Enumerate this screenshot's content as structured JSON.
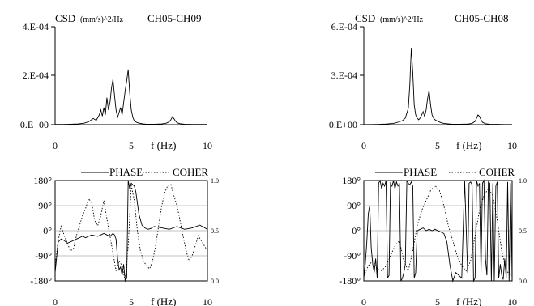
{
  "chart_data": [
    {
      "type": "line",
      "panel": "csd",
      "ylabel": {
        "prefix": "CSD",
        "units": "(mm/s)^2/Hz"
      },
      "channel": "CH05-CH09",
      "y_ticks": [
        "0.E+00",
        "2.E-04",
        "4.E-04"
      ],
      "ylim": [
        0,
        0.0004
      ],
      "x_ticks": [
        "0",
        "5",
        "10"
      ],
      "xlabel": "f (Hz)",
      "xlim": [
        0,
        10
      ],
      "series": [
        {
          "style": "solid",
          "x": [
            0,
            0.5,
            1,
            1.5,
            1.9,
            2.2,
            2.5,
            2.7,
            2.9,
            3.0,
            3.1,
            3.2,
            3.3,
            3.4,
            3.5,
            3.6,
            3.7,
            3.8,
            3.9,
            4.0,
            4.1,
            4.2,
            4.3,
            4.4,
            4.5,
            4.6,
            4.7,
            4.8,
            4.9,
            5.0,
            5.1,
            5.2,
            5.4,
            5.6,
            5.8,
            6.0,
            6.5,
            7.0,
            7.3,
            7.5,
            7.6,
            7.7,
            7.8,
            7.9,
            8.0,
            8.2,
            8.5,
            9,
            9.5,
            10
          ],
          "y": [
            1e-06,
            1e-06,
            2e-06,
            3e-06,
            6e-06,
            1.2e-05,
            2.5e-05,
            1.8e-05,
            4e-05,
            6e-05,
            3.5e-05,
            7e-05,
            4e-05,
            0.00011,
            6e-05,
            9e-05,
            0.00015,
            0.000185,
            0.00012,
            6e-05,
            3e-05,
            5e-05,
            7e-05,
            4e-05,
            9e-05,
            0.00014,
            0.00018,
            0.000225,
            0.00013,
            6e-05,
            3e-05,
            1.5e-05,
            8e-06,
            5e-06,
            3e-06,
            2e-06,
            2e-06,
            3e-06,
            6e-06,
            1.2e-05,
            2e-05,
            3.2e-05,
            2.5e-05,
            1.5e-05,
            8e-06,
            4e-06,
            2e-06,
            1e-06,
            1e-06,
            1e-06
          ]
        }
      ]
    },
    {
      "type": "line",
      "panel": "csd",
      "ylabel": {
        "prefix": "CSD",
        "units": "(mm/s)^2/Hz"
      },
      "channel": "CH05-CH08",
      "y_ticks": [
        "0.E+00",
        "3.E-04",
        "6.E-04"
      ],
      "ylim": [
        0,
        0.0006
      ],
      "x_ticks": [
        "0",
        "5",
        "10"
      ],
      "xlabel": "f (Hz)",
      "xlim": [
        0,
        10
      ],
      "series": [
        {
          "style": "solid",
          "x": [
            0,
            0.5,
            1,
            1.5,
            2.0,
            2.3,
            2.6,
            2.8,
            3.0,
            3.1,
            3.2,
            3.3,
            3.4,
            3.5,
            3.6,
            3.7,
            3.8,
            3.9,
            4.0,
            4.1,
            4.2,
            4.3,
            4.4,
            4.5,
            4.6,
            4.7,
            4.8,
            4.9,
            5.0,
            5.2,
            5.4,
            5.6,
            5.8,
            6.0,
            6.5,
            7.0,
            7.3,
            7.5,
            7.6,
            7.7,
            7.8,
            7.9,
            8.0,
            8.2,
            8.5,
            9,
            9.5,
            10
          ],
          "y": [
            1e-06,
            1e-06,
            2e-06,
            4e-06,
            8e-06,
            1.5e-05,
            2.5e-05,
            4e-05,
            0.0001,
            0.00024,
            0.00047,
            0.00032,
            0.00012,
            6e-05,
            4e-05,
            3e-05,
            4e-05,
            6e-05,
            8e-05,
            5e-05,
            9e-05,
            0.00016,
            0.00021,
            0.00012,
            6e-05,
            4e-05,
            3e-05,
            2.5e-05,
            2e-05,
            1.2e-05,
            8e-06,
            6e-06,
            4e-06,
            3e-06,
            3e-06,
            4e-06,
            8e-06,
            2e-05,
            4e-05,
            6e-05,
            5e-05,
            3e-05,
            1.5e-05,
            6e-06,
            3e-06,
            2e-06,
            1e-06,
            1e-06
          ]
        }
      ]
    },
    {
      "type": "line",
      "panel": "phase",
      "legend": [
        "PHASE",
        "COHER"
      ],
      "legend_position": "top",
      "y_ticks": [
        "180°",
        "90°",
        "0°",
        "-90°",
        "-180°"
      ],
      "ylim": [
        -180,
        180
      ],
      "y2_ticks": [
        "1.0",
        "0.5",
        "0.0"
      ],
      "y2lim": [
        0,
        1
      ],
      "x_ticks": [
        "0",
        "5",
        "10"
      ],
      "xlabel": "f (Hz)",
      "xlim": [
        0,
        10
      ],
      "grid": true,
      "series": [
        {
          "name": "PHASE",
          "style": "solid",
          "axis": "left",
          "x": [
            0,
            0.2,
            0.4,
            0.6,
            0.8,
            1.0,
            1.2,
            1.4,
            1.6,
            1.8,
            2.0,
            2.2,
            2.4,
            2.6,
            2.8,
            3.0,
            3.2,
            3.4,
            3.6,
            3.8,
            3.9,
            4.0,
            4.1,
            4.2,
            4.3,
            4.4,
            4.5,
            4.6,
            4.7,
            4.8,
            4.9,
            5.0,
            5.1,
            5.2,
            5.3,
            5.5,
            5.7,
            5.9,
            6.1,
            6.3,
            6.5,
            7.0,
            7.5,
            8.0,
            8.5,
            9.0,
            9.5,
            10
          ],
          "y": [
            -150,
            -40,
            -30,
            -35,
            -45,
            -40,
            -35,
            -30,
            -25,
            -20,
            -25,
            -20,
            -15,
            -18,
            -20,
            -15,
            -10,
            -15,
            -20,
            -10,
            -15,
            -30,
            -100,
            -140,
            -130,
            -160,
            -120,
            -180,
            -170,
            180,
            150,
            170,
            165,
            160,
            140,
            60,
            20,
            10,
            5,
            8,
            15,
            10,
            5,
            15,
            5,
            10,
            20,
            5
          ]
        },
        {
          "name": "COHER",
          "style": "dotted",
          "axis": "right",
          "x": [
            0,
            0.2,
            0.4,
            0.6,
            0.8,
            1.0,
            1.2,
            1.4,
            1.6,
            1.8,
            2.0,
            2.2,
            2.4,
            2.6,
            2.8,
            3.0,
            3.2,
            3.4,
            3.6,
            3.8,
            4.0,
            4.2,
            4.4,
            4.6,
            4.8,
            5.0,
            5.2,
            5.4,
            5.6,
            5.8,
            6.0,
            6.2,
            6.4,
            6.6,
            6.8,
            7.0,
            7.2,
            7.4,
            7.6,
            7.8,
            8.0,
            8.2,
            8.4,
            8.6,
            8.8,
            9.0,
            9.2,
            9.4,
            9.6,
            9.8,
            10
          ],
          "y": [
            0.15,
            0.4,
            0.55,
            0.45,
            0.38,
            0.3,
            0.32,
            0.45,
            0.55,
            0.65,
            0.72,
            0.82,
            0.78,
            0.6,
            0.55,
            0.65,
            0.8,
            0.62,
            0.45,
            0.28,
            0.1,
            0.2,
            0.15,
            0.0,
            0.35,
            0.95,
            0.8,
            0.5,
            0.3,
            0.2,
            0.15,
            0.12,
            0.2,
            0.35,
            0.55,
            0.75,
            0.88,
            0.95,
            0.96,
            0.85,
            0.75,
            0.6,
            0.45,
            0.3,
            0.2,
            0.25,
            0.35,
            0.45,
            0.4,
            0.35,
            0.3
          ]
        }
      ]
    },
    {
      "type": "line",
      "panel": "phase",
      "legend": [
        "PHASE",
        "COHER"
      ],
      "legend_position": "top",
      "y_ticks": [
        "180°",
        "90°",
        "0°",
        "-90°",
        "-180°"
      ],
      "ylim": [
        -180,
        180
      ],
      "y2_ticks": [
        "1.0",
        "0.5",
        "0.0"
      ],
      "y2lim": [
        0,
        1
      ],
      "x_ticks": [
        "0",
        "5",
        "10"
      ],
      "xlabel": "f (Hz)",
      "xlim": [
        0,
        10
      ],
      "grid": true,
      "series": [
        {
          "name": "PHASE",
          "style": "solid",
          "axis": "left",
          "x": [
            0,
            0.1,
            0.2,
            0.3,
            0.4,
            0.5,
            0.6,
            0.7,
            0.8,
            0.9,
            1.0,
            1.1,
            1.2,
            1.3,
            1.4,
            1.5,
            1.6,
            1.7,
            1.8,
            1.9,
            2.0,
            2.1,
            2.2,
            2.3,
            2.4,
            2.5,
            2.6,
            2.7,
            2.8,
            2.9,
            3.0,
            3.1,
            3.2,
            3.3,
            3.4,
            3.5,
            3.6,
            3.8,
            4.0,
            4.2,
            4.4,
            4.6,
            4.8,
            5.0,
            5.2,
            5.4,
            5.6,
            5.8,
            6.0,
            6.2,
            6.4,
            6.6,
            6.8,
            7.0,
            7.1,
            7.2,
            7.3,
            7.4,
            7.5,
            7.6,
            7.7,
            7.8,
            7.9,
            8.0,
            8.1,
            8.2,
            8.3,
            8.4,
            8.5,
            8.6,
            8.7,
            8.8,
            8.9,
            9.0,
            9.1,
            9.2,
            9.3,
            9.4,
            9.5,
            9.6,
            9.7,
            9.8,
            9.9,
            10
          ],
          "y": [
            -170,
            -120,
            -40,
            60,
            90,
            -60,
            -120,
            -150,
            -100,
            -170,
            170,
            180,
            150,
            170,
            160,
            180,
            -170,
            -160,
            170,
            160,
            180,
            150,
            175,
            160,
            170,
            -180,
            -170,
            -150,
            -120,
            180,
            170,
            165,
            175,
            160,
            -170,
            -150,
            0,
            5,
            10,
            0,
            5,
            0,
            5,
            0,
            -5,
            -10,
            -40,
            -120,
            -180,
            -150,
            -160,
            -170,
            180,
            -150,
            170,
            175,
            165,
            -180,
            -170,
            180,
            160,
            170,
            -150,
            170,
            180,
            -100,
            -160,
            175,
            170,
            -180,
            170,
            -180,
            160,
            175,
            -170,
            -120,
            -160,
            -175,
            -100,
            -170,
            175,
            -180,
            170,
            -180
          ]
        },
        {
          "name": "COHER",
          "style": "dotted",
          "axis": "right",
          "x": [
            0,
            0.3,
            0.6,
            0.9,
            1.2,
            1.5,
            1.8,
            2.1,
            2.4,
            2.7,
            3.0,
            3.3,
            3.6,
            3.9,
            4.2,
            4.5,
            4.8,
            5.1,
            5.4,
            5.7,
            6.0,
            6.3,
            6.6,
            6.9,
            7.2,
            7.5,
            7.8,
            8.1,
            8.4,
            8.7,
            9.0,
            9.3,
            9.6,
            10
          ],
          "y": [
            0.05,
            0.15,
            0.2,
            0.12,
            0.1,
            0.15,
            0.25,
            0.35,
            0.4,
            0.2,
            0.1,
            0.3,
            0.55,
            0.7,
            0.8,
            0.9,
            0.95,
            0.9,
            0.75,
            0.55,
            0.4,
            0.25,
            0.15,
            0.1,
            0.2,
            0.45,
            0.7,
            0.85,
            0.92,
            0.85,
            0.6,
            0.3,
            0.1,
            0.05
          ]
        }
      ]
    }
  ]
}
